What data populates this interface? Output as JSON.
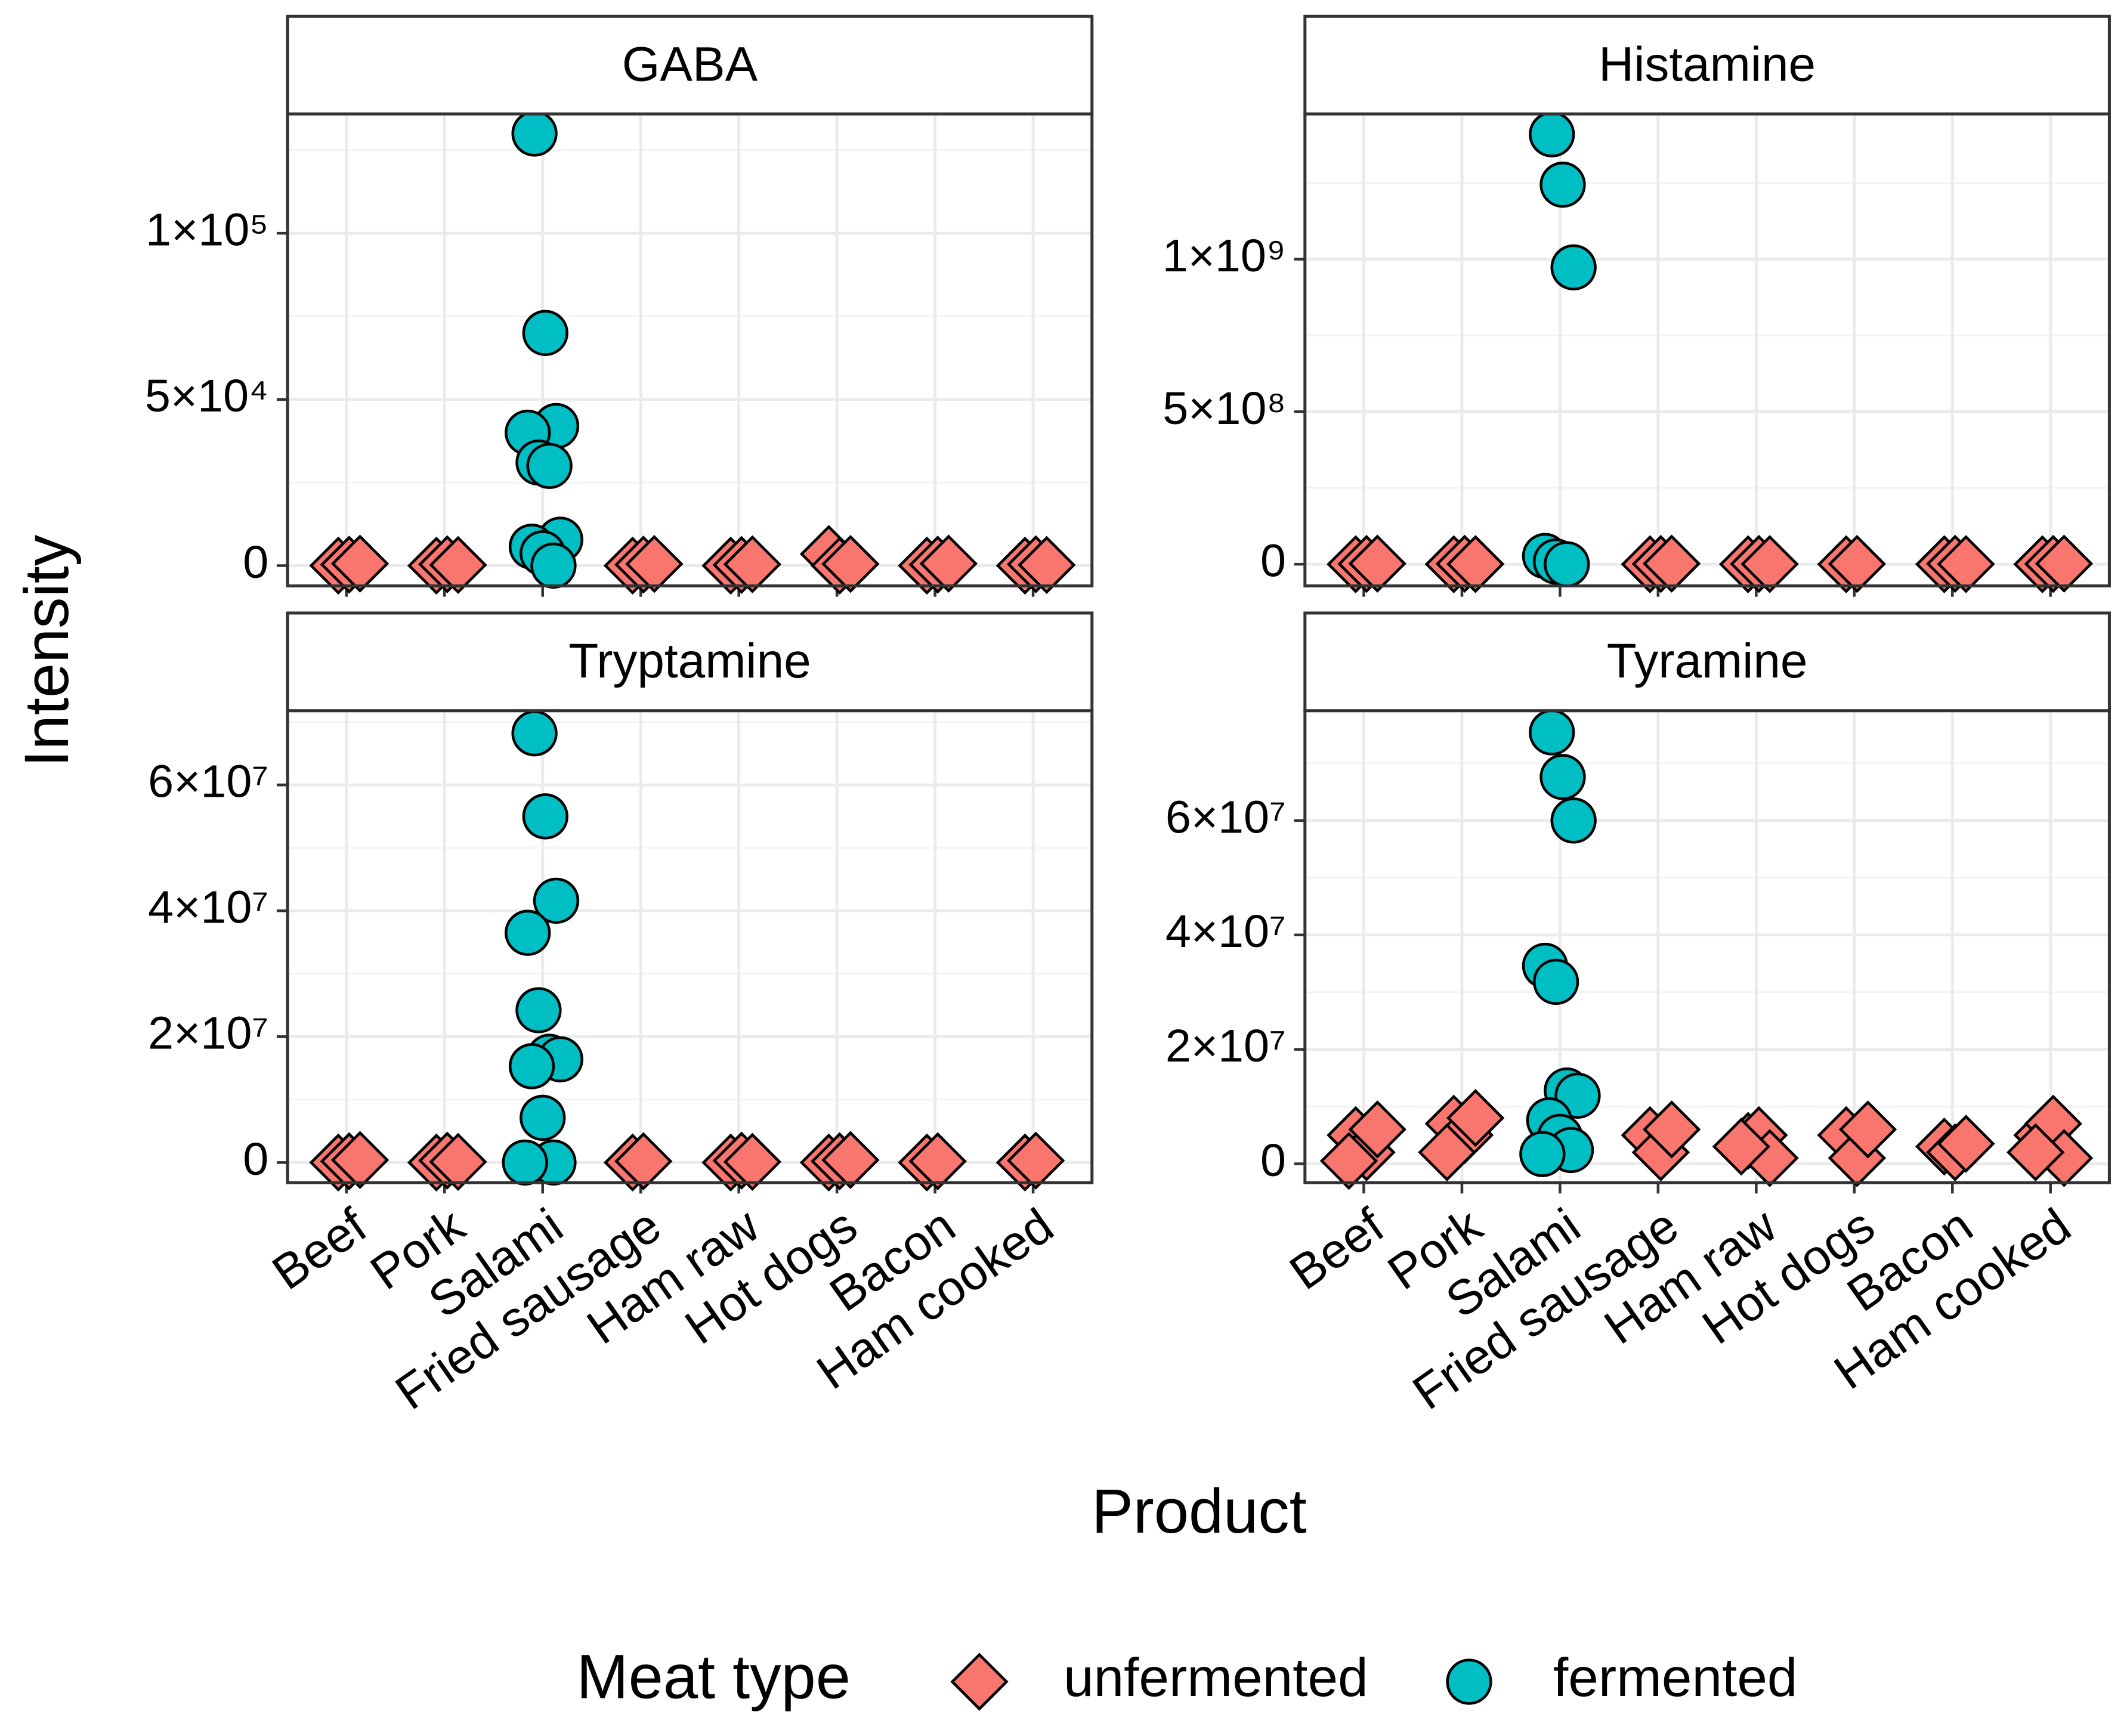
{
  "figure": {
    "xlabel": "Product",
    "ylabel": "Intensity"
  },
  "legend": {
    "title": "Meat type",
    "position": "bottom",
    "entries": [
      {
        "name": "unfermented",
        "color": "#F8766D",
        "marker": "diamond"
      },
      {
        "name": "fermented",
        "color": "#00BFC4",
        "marker": "circle"
      }
    ]
  },
  "chart_data": [
    {
      "type": "scatter",
      "title": "GABA",
      "categories": [
        "Beef",
        "Pork",
        "Salami",
        "Fried sausage",
        "Ham raw",
        "Hot dogs",
        "Bacon",
        "Ham cooked"
      ],
      "ylim": [
        -6100,
        135900
      ],
      "yticks": [
        0,
        {
          "value": 50000,
          "label": "5×10⁴"
        },
        {
          "value": 100000,
          "label": "1×10⁵"
        }
      ],
      "grid": true,
      "x_labels": false,
      "series": [
        {
          "x": [
            "Beef",
            "Beef",
            "Beef",
            "Pork",
            "Pork",
            "Pork",
            "Fried sausage",
            "Fried sausage",
            "Fried sausage",
            "Ham raw",
            "Ham raw",
            "Ham raw",
            "Hot dogs",
            "Hot dogs",
            "Hot dogs",
            "Bacon",
            "Bacon",
            "Bacon",
            "Ham cooked",
            "Ham cooked",
            "Ham cooked"
          ],
          "values": [
            0,
            300,
            600,
            0,
            400,
            200,
            0,
            300,
            500,
            0,
            200,
            400,
            3500,
            0,
            500,
            0,
            300,
            600,
            0,
            400,
            200
          ]
        },
        {
          "x": [
            "Salami",
            "Salami",
            "Salami",
            "Salami",
            "Salami",
            "Salami",
            "Salami",
            "Salami",
            "Salami",
            "Salami"
          ],
          "values": [
            130000,
            70000,
            42000,
            40000,
            31000,
            30000,
            7800,
            5700,
            3700,
            0
          ]
        }
      ]
    },
    {
      "type": "scatter",
      "title": "Histamine",
      "categories": [
        "Beef",
        "Pork",
        "Salami",
        "Fried sausage",
        "Ham raw",
        "Hot dogs",
        "Bacon",
        "Ham cooked"
      ],
      "ylim": [
        -71000000,
        1476000000
      ],
      "yticks": [
        0,
        {
          "value": 500000000,
          "label": "5×10⁸"
        },
        {
          "value": 1000000000,
          "label": "1×10⁹"
        }
      ],
      "grid": true,
      "x_labels": false,
      "series": [
        {
          "x": [
            "Beef",
            "Beef",
            "Beef",
            "Pork",
            "Pork",
            "Pork",
            "Fried sausage",
            "Fried sausage",
            "Fried sausage",
            "Ham raw",
            "Ham raw",
            "Ham raw",
            "Hot dogs",
            "Hot dogs",
            "Bacon",
            "Bacon",
            "Bacon",
            "Ham cooked",
            "Ham cooked",
            "Ham cooked"
          ],
          "values": [
            0,
            1000000,
            2000000,
            0,
            1500000,
            500000,
            0,
            1000000,
            2000000,
            0,
            1000000,
            500000,
            0,
            1000000,
            0,
            1500000,
            500000,
            0,
            1000000,
            2000000
          ]
        },
        {
          "x": [
            "Salami",
            "Salami",
            "Salami",
            "Salami",
            "Salami",
            "Salami"
          ],
          "values": [
            1409000000,
            1244000000,
            973000000,
            27000000,
            9000000,
            0
          ]
        }
      ]
    },
    {
      "type": "scatter",
      "title": "Tryptamine",
      "categories": [
        "Beef",
        "Pork",
        "Salami",
        "Fried sausage",
        "Ham raw",
        "Hot dogs",
        "Bacon",
        "Ham cooked"
      ],
      "ylim": [
        -3200000,
        71800000
      ],
      "yticks": [
        0,
        {
          "value": 20000000,
          "label": "2×10⁷"
        },
        {
          "value": 40000000,
          "label": "4×10⁷"
        },
        {
          "value": 60000000,
          "label": "6×10⁷"
        }
      ],
      "grid": true,
      "x_labels": true,
      "series": [
        {
          "x": [
            "Beef",
            "Beef",
            "Beef",
            "Pork",
            "Pork",
            "Pork",
            "Fried sausage",
            "Fried sausage",
            "Ham raw",
            "Ham raw",
            "Ham raw",
            "Hot dogs",
            "Hot dogs",
            "Hot dogs",
            "Bacon",
            "Bacon",
            "Ham cooked",
            "Ham cooked"
          ],
          "values": [
            0,
            200000,
            400000,
            0,
            300000,
            100000,
            0,
            200000,
            0,
            300000,
            100000,
            0,
            200000,
            400000,
            0,
            200000,
            0,
            300000
          ]
        },
        {
          "x": [
            "Salami",
            "Salami",
            "Salami",
            "Salami",
            "Salami",
            "Salami",
            "Salami",
            "Salami",
            "Salami",
            "Salami",
            "Salami"
          ],
          "values": [
            68200000,
            55000000,
            41600000,
            36500000,
            24200000,
            16800000,
            16400000,
            15300000,
            7100000,
            0,
            0
          ]
        }
      ]
    },
    {
      "type": "scatter",
      "title": "Tyramine",
      "categories": [
        "Beef",
        "Pork",
        "Salami",
        "Fried sausage",
        "Ham raw",
        "Hot dogs",
        "Bacon",
        "Ham cooked"
      ],
      "ylim": [
        -3300000,
        79200000
      ],
      "yticks": [
        0,
        {
          "value": 20000000,
          "label": "2×10⁷"
        },
        {
          "value": 40000000,
          "label": "4×10⁷"
        },
        {
          "value": 60000000,
          "label": "6×10⁷"
        }
      ],
      "grid": true,
      "x_labels": true,
      "series": [
        {
          "x": [
            "Beef",
            "Beef",
            "Beef",
            "Beef",
            "Pork",
            "Pork",
            "Pork",
            "Pork",
            "Fried sausage",
            "Fried sausage",
            "Fried sausage",
            "Ham raw",
            "Ham raw",
            "Ham raw",
            "Ham raw",
            "Hot dogs",
            "Hot dogs",
            "Hot dogs",
            "Bacon",
            "Bacon",
            "Bacon",
            "Ham cooked",
            "Ham cooked",
            "Ham cooked",
            "Ham cooked"
          ],
          "values": [
            5000000,
            2000000,
            6000000,
            500000,
            7000000,
            5000000,
            8000000,
            2000000,
            5000000,
            2000000,
            6000000,
            4000000,
            5000000,
            1000000,
            3000000,
            5000000,
            1000000,
            6000000,
            3000000,
            2000000,
            3500000,
            5000000,
            7000000,
            1000000,
            2000000
          ]
        },
        {
          "x": [
            "Salami",
            "Salami",
            "Salami",
            "Salami",
            "Salami",
            "Salami",
            "Salami",
            "Salami",
            "Salami",
            "Salami",
            "Salami"
          ],
          "values": [
            75400000,
            67600000,
            60000000,
            34600000,
            31800000,
            12800000,
            11900000,
            7600000,
            4700000,
            2400000,
            1700000
          ]
        }
      ]
    }
  ]
}
